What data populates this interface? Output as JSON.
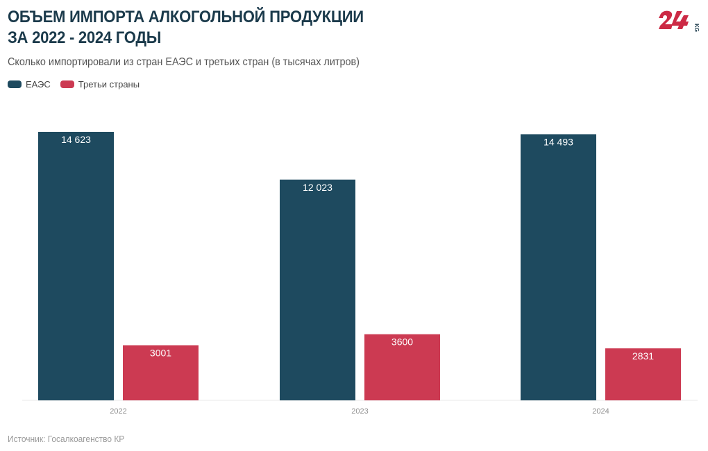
{
  "header": {
    "title_line1": "ОБЪЕМ ИМПОРТА АЛКОГОЛЬНОЙ ПРОДУКЦИИ",
    "title_line2": "ЗА 2022 - 2024 ГОДЫ",
    "subtitle": "Сколько импортировали из стран ЕАЭС и третьих стран (в тысячах литров)",
    "logo_text": "24 KG"
  },
  "legend": [
    {
      "label": "ЕАЭС",
      "color": "#1e4a5f"
    },
    {
      "label": "Треть​и страны",
      "color": "#cc3a52"
    }
  ],
  "footer": {
    "source": "Источник: Госалкоагенство КР"
  },
  "chart_data": {
    "type": "bar",
    "title": "ОБЪЕМ ИМПОРТА АЛКОГОЛЬНОЙ ПРОДУКЦИИ ЗА 2022 - 2024 ГОДЫ",
    "subtitle": "Сколько импортировали из стран ЕАЭС и третьих стран (в тысячах литров)",
    "xlabel": "",
    "ylabel": "",
    "categories": [
      "2022",
      "2023",
      "2024"
    ],
    "series": [
      {
        "name": "ЕАЭС",
        "color": "#1e4a5f",
        "values": [
          14623,
          12023,
          14493
        ],
        "labels": [
          "14 623",
          "12 023",
          "14 493"
        ]
      },
      {
        "name": "Третьи страны",
        "color": "#cc3a52",
        "values": [
          3001,
          3600,
          2831
        ],
        "labels": [
          "3001",
          "3600",
          "2831"
        ]
      }
    ],
    "ylim": [
      0,
      14623
    ],
    "grid": false,
    "legend_position": "top-left"
  }
}
